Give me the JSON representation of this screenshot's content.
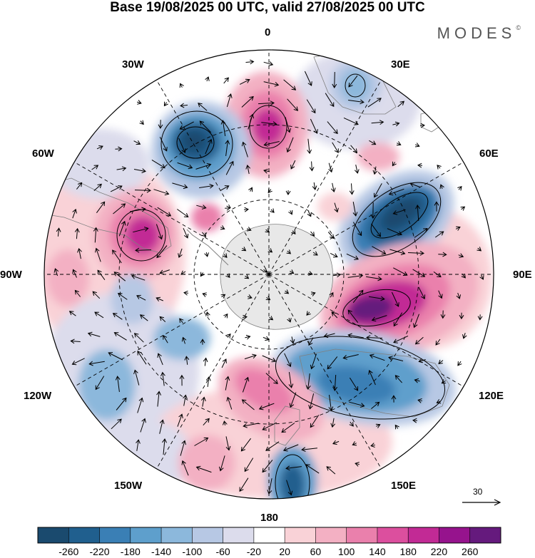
{
  "title": "Base 19/08/2025 00 UTC, valid 27/08/2025 00 UTC",
  "brand": "MODES",
  "brand_mark": "©",
  "longitude_labels": {
    "deg0": "0",
    "deg30e": "30E",
    "deg60e": "60E",
    "deg90e": "90E",
    "deg120e": "120E",
    "deg150e": "150E",
    "deg180": "180",
    "deg150w": "150W",
    "deg120w": "120W",
    "deg90w": "90W",
    "deg60w": "60W",
    "deg30w": "30W"
  },
  "reference_vector": {
    "label": "30"
  },
  "colorbar": {
    "colors": [
      "#1a4a6e",
      "#205f8e",
      "#3a7fb5",
      "#5e9fcc",
      "#8cb8dc",
      "#b7c8e4",
      "#dcdcec",
      "#ffffff",
      "#f9d2d7",
      "#f3b0c3",
      "#ea80ac",
      "#dc4f9e",
      "#c22a95",
      "#96138d",
      "#651a7d"
    ],
    "labels": [
      "-260",
      "-220",
      "-180",
      "-140",
      "-100",
      "-60",
      "-20",
      "20",
      "60",
      "100",
      "140",
      "180",
      "220",
      "260"
    ]
  },
  "colors": {
    "coast": "#808080",
    "grid": "#000000",
    "contour": "#000000"
  },
  "anomaly_centers": [
    {
      "name": "positive-anomaly-0deg",
      "lon": 0,
      "value": 180
    },
    {
      "name": "negative-anomaly-20w",
      "lon": -20,
      "value": -220
    },
    {
      "name": "positive-anomaly-60w",
      "lon": -60,
      "value": 180
    },
    {
      "name": "negative-anomaly-60e",
      "lon": 60,
      "value": -260
    },
    {
      "name": "positive-anomaly-100e",
      "lon": 100,
      "value": 240
    },
    {
      "name": "negative-anomaly-140e",
      "lon": 140,
      "value": -180
    },
    {
      "name": "positive-anomaly-170e",
      "lon": 170,
      "value": 140
    },
    {
      "name": "negative-anomaly-175e",
      "lon": 175,
      "value": -200
    },
    {
      "name": "negative-anomaly-30e",
      "lon": 30,
      "value": -100
    }
  ]
}
